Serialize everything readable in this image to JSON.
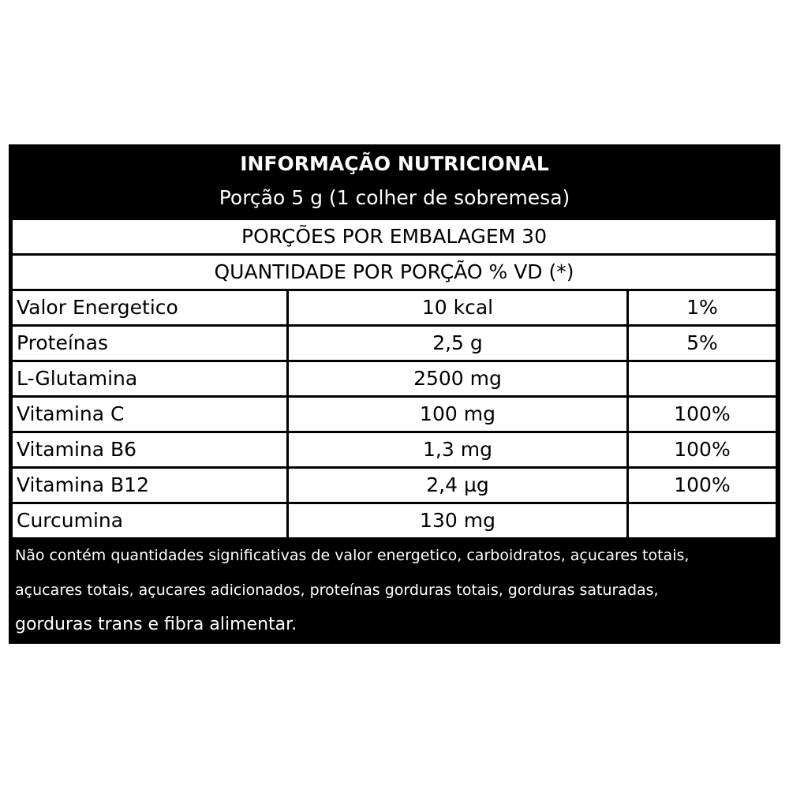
{
  "label": {
    "title": "INFORMAÇÃO NUTRICIONAL",
    "portion": "Porção 5 g (1 colher de sobremesa)",
    "servings": "PORÇÕES POR EMBALAGEM 30",
    "quantity_header": "QUANTIDADE POR PORÇÃO % VD (*)",
    "rows": [
      {
        "name": "Valor Energetico",
        "qty": "10 kcal",
        "vd": "1%"
      },
      {
        "name": "Proteínas",
        "qty": "2,5 g",
        "vd": "5%"
      },
      {
        "name": "L-Glutamina",
        "qty": "2500 mg",
        "vd": ""
      },
      {
        "name": "Vitamina C",
        "qty": "100 mg",
        "vd": "100%"
      },
      {
        "name": "Vitamina B6",
        "qty": "1,3 mg",
        "vd": "100%"
      },
      {
        "name": "Vitamina B12",
        "qty": "2,4 µg",
        "vd": "100%"
      },
      {
        "name": "Curcumina",
        "qty": "130 mg",
        "vd": ""
      }
    ],
    "footnote": {
      "line1": "Não contém quantidades significativas de valor energetico, carboidratos, açucares totais,",
      "line2": "açucares totais, açucares adicionados, proteínas gorduras totais, gorduras saturadas,",
      "line3": "gorduras trans e fibra alimentar."
    }
  }
}
